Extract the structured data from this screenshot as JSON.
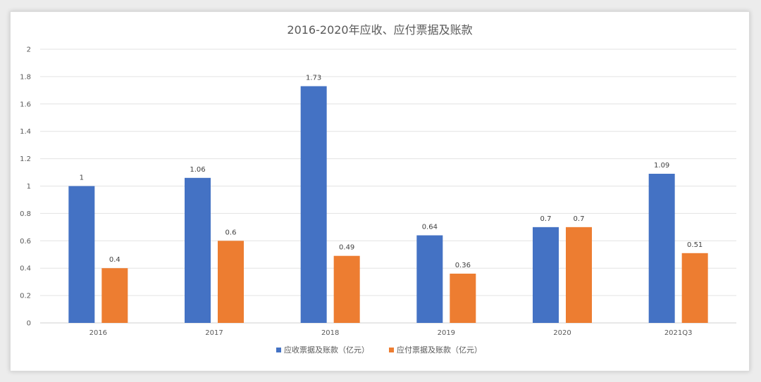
{
  "chart_data": {
    "type": "bar",
    "title": "2016-2020年应收、应付票据及账款",
    "categories": [
      "2016",
      "2017",
      "2018",
      "2019",
      "2020",
      "2021Q3"
    ],
    "series": [
      {
        "name": "应收票据及账款（亿元）",
        "color": "#4472c4",
        "values": [
          1,
          1.06,
          1.73,
          0.64,
          0.7,
          1.09
        ]
      },
      {
        "name": "应付票据及账款（亿元）",
        "color": "#ed7d31",
        "values": [
          0.4,
          0.6,
          0.49,
          0.36,
          0.7,
          0.51
        ]
      }
    ],
    "ylim": [
      0,
      2
    ],
    "yticks": [
      "0",
      "0.2",
      "0.4",
      "0.6",
      "0.8",
      "1",
      "1.2",
      "1.4",
      "1.6",
      "1.8",
      "2"
    ],
    "grid": true,
    "legend": "bottom",
    "data_labels": true
  }
}
